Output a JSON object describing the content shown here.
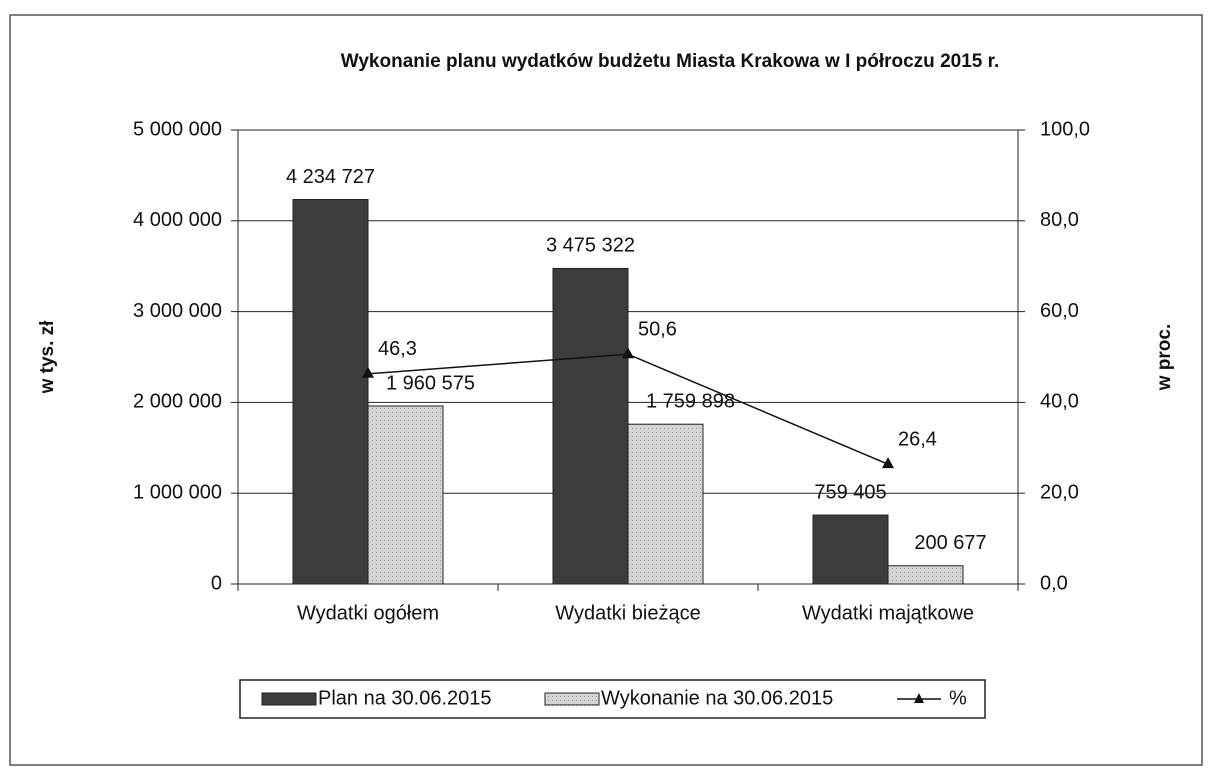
{
  "chart_data": {
    "type": "bar",
    "title": "Wykonanie planu wydatków budżetu Miasta Krakowa w I półroczu 2015 r.",
    "ylabel": "w tys. zł",
    "y2label": "w proc.",
    "categories": [
      "Wydatki ogółem",
      "Wydatki bieżące",
      "Wydatki majątkowe"
    ],
    "series": [
      {
        "name": "Plan na 30.06.2015",
        "color": "#3c3c3c",
        "values": [
          4234727,
          3475322,
          759405
        ],
        "value_labels": [
          "4 234 727",
          "3 475 322",
          "759 405"
        ]
      },
      {
        "name": "Wykonanie na 30.06.2015",
        "color": "#cfcfcf",
        "values": [
          1960575,
          1759898,
          200677
        ],
        "value_labels": [
          "1 960 575",
          "1 759 898",
          "200 677"
        ]
      },
      {
        "name": "%",
        "type": "line",
        "axis": "y2",
        "color": "#111111",
        "values": [
          46.3,
          50.6,
          26.4
        ],
        "value_labels": [
          "46,3",
          "50,6",
          "26,4"
        ]
      }
    ],
    "ylim": [
      0,
      5000000
    ],
    "yticks": [
      0,
      {
        "value": 1000000,
        "label": "1 000 000"
      },
      {
        "value": 2000000,
        "label": "2 000 000"
      },
      {
        "value": 3000000,
        "label": "3 000 000"
      },
      {
        "value": 4000000,
        "label": "4 000 000"
      },
      {
        "value": 5000000,
        "label": "5 000 000"
      }
    ],
    "y2lim": [
      0,
      100
    ],
    "y2ticks": [
      {
        "value": 0,
        "label": "0,0"
      },
      {
        "value": 20,
        "label": "20,0"
      },
      {
        "value": 40,
        "label": "40,0"
      },
      {
        "value": 60,
        "label": "60,0"
      },
      {
        "value": 80,
        "label": "80,0"
      },
      {
        "value": 100,
        "label": "100,0"
      }
    ],
    "grid": true,
    "legend": "bottom"
  }
}
